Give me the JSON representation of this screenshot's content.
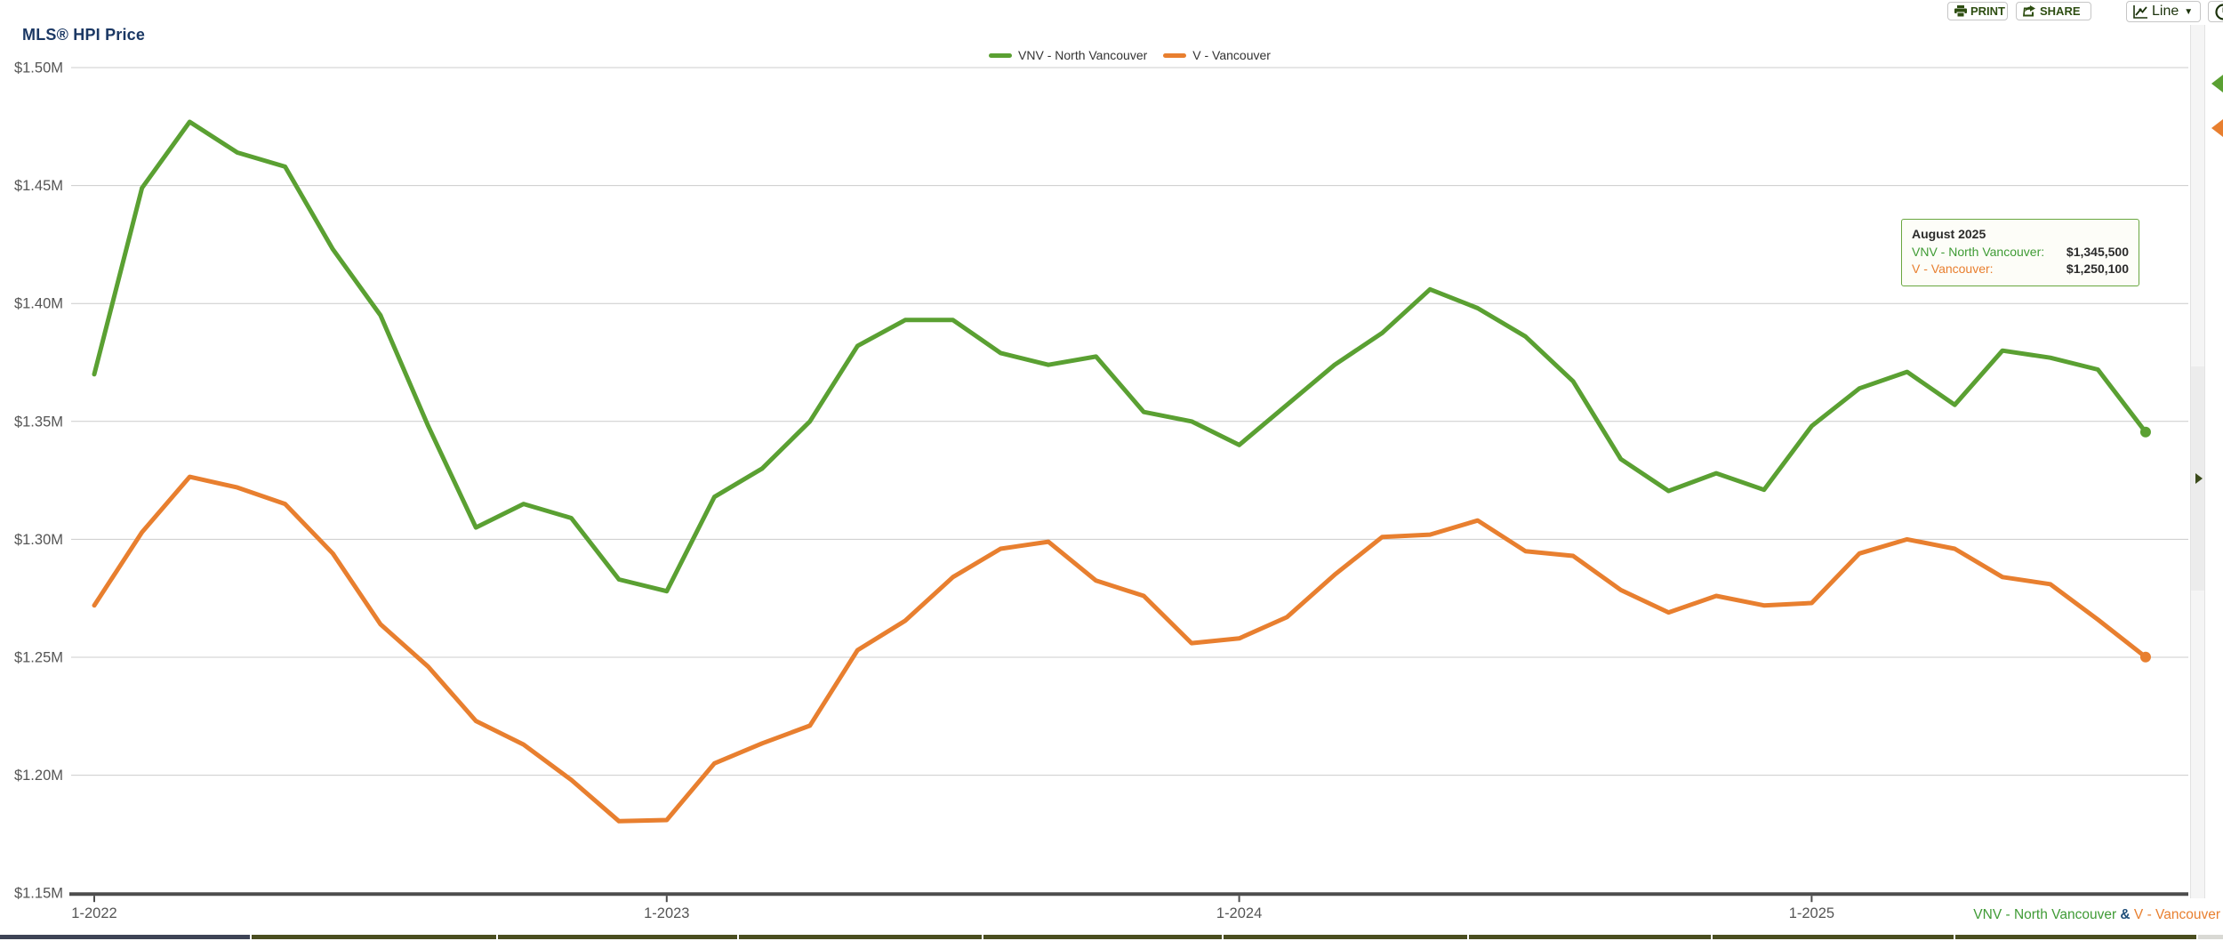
{
  "title": "MLS® HPI Price",
  "toolbar": {
    "print_label": "PRINT",
    "share_label": "SHARE",
    "chart_type_label": "Line",
    "caret": "▼"
  },
  "legend": [
    {
      "label": "VNV - North Vancouver",
      "color": "#5AA032"
    },
    {
      "label": "V - Vancouver",
      "color": "#E87F2F"
    }
  ],
  "tooltip": {
    "title": "August 2025",
    "rows": [
      {
        "label": "VNV - North Vancouver:",
        "value": "$1,345,500",
        "color": "#3F9B35"
      },
      {
        "label": "V - Vancouver:",
        "value": "$1,250,100",
        "color": "#E87F2F"
      }
    ]
  },
  "footer": {
    "series_a": "VNV - North Vancouver",
    "amp": " & ",
    "series_b": "V - Vancouver",
    "series_a_color": "#3F9B35",
    "amp_color": "#1F4E79",
    "series_b_color": "#E87F2F"
  },
  "navigator": {
    "boundaries": [
      0,
      281,
      558,
      829,
      1104,
      1374,
      1650,
      1924,
      2197,
      2470,
      2500
    ],
    "colors": [
      "#3E4456",
      "#4A4E20",
      "#4A4E20",
      "#4A4E20",
      "#4A4E20",
      "#4A4E20",
      "#4A4E20",
      "#4A4E20",
      "#4A4E20",
      "#D9D9D4"
    ]
  },
  "chart_data": {
    "type": "line",
    "title": "MLS® HPI Price",
    "xlabel": "",
    "ylabel": "",
    "grid": true,
    "legend_position": "top-center",
    "ylim": [
      1150000,
      1500000
    ],
    "y_tick_step": 50000,
    "y_tick_labels": [
      "$1.50M",
      "$1.45M",
      "$1.40M",
      "$1.35M",
      "$1.30M",
      "$1.25M",
      "$1.20M",
      "$1.15M"
    ],
    "x_tick_labels": [
      "1-2022",
      "1-2023",
      "1-2024",
      "1-2025"
    ],
    "x_tick_month_indices": [
      0,
      12,
      24,
      36
    ],
    "months": [
      "1-2022",
      "2-2022",
      "3-2022",
      "4-2022",
      "5-2022",
      "6-2022",
      "7-2022",
      "8-2022",
      "9-2022",
      "10-2022",
      "11-2022",
      "12-2022",
      "1-2023",
      "2-2023",
      "3-2023",
      "4-2023",
      "5-2023",
      "6-2023",
      "7-2023",
      "8-2023",
      "9-2023",
      "10-2023",
      "11-2023",
      "12-2023",
      "1-2024",
      "2-2024",
      "3-2024",
      "4-2024",
      "5-2024",
      "6-2024",
      "7-2024",
      "8-2024",
      "9-2024",
      "10-2024",
      "11-2024",
      "12-2024",
      "1-2025",
      "2-2025",
      "3-2025",
      "4-2025",
      "5-2025",
      "6-2025",
      "7-2025",
      "8-2025"
    ],
    "series": [
      {
        "name": "VNV - North Vancouver",
        "color": "#5AA032",
        "values": [
          1370000,
          1449000,
          1477000,
          1464000,
          1458000,
          1423000,
          1395000,
          1348000,
          1305000,
          1315000,
          1309000,
          1283000,
          1278000,
          1318000,
          1330000,
          1350000,
          1382000,
          1393000,
          1393000,
          1379000,
          1374000,
          1377500,
          1354000,
          1350000,
          1340000,
          1357000,
          1374000,
          1387500,
          1406000,
          1398000,
          1386000,
          1367000,
          1334000,
          1320500,
          1328000,
          1321000,
          1348000,
          1364000,
          1371000,
          1357000,
          1380000,
          1377000,
          1372000,
          1345500
        ]
      },
      {
        "name": "V - Vancouver",
        "color": "#E87F2F",
        "values": [
          1272000,
          1303000,
          1326500,
          1322000,
          1315000,
          1294000,
          1264000,
          1246000,
          1223000,
          1213000,
          1198000,
          1180500,
          1181000,
          1205000,
          1213500,
          1221000,
          1253000,
          1265500,
          1284000,
          1296000,
          1299000,
          1282500,
          1276000,
          1256000,
          1258000,
          1267000,
          1285000,
          1301000,
          1302000,
          1308000,
          1295000,
          1293000,
          1278500,
          1269000,
          1276000,
          1272000,
          1273000,
          1294000,
          1300000,
          1296000,
          1284000,
          1281000,
          1266000,
          1250100
        ]
      }
    ]
  }
}
